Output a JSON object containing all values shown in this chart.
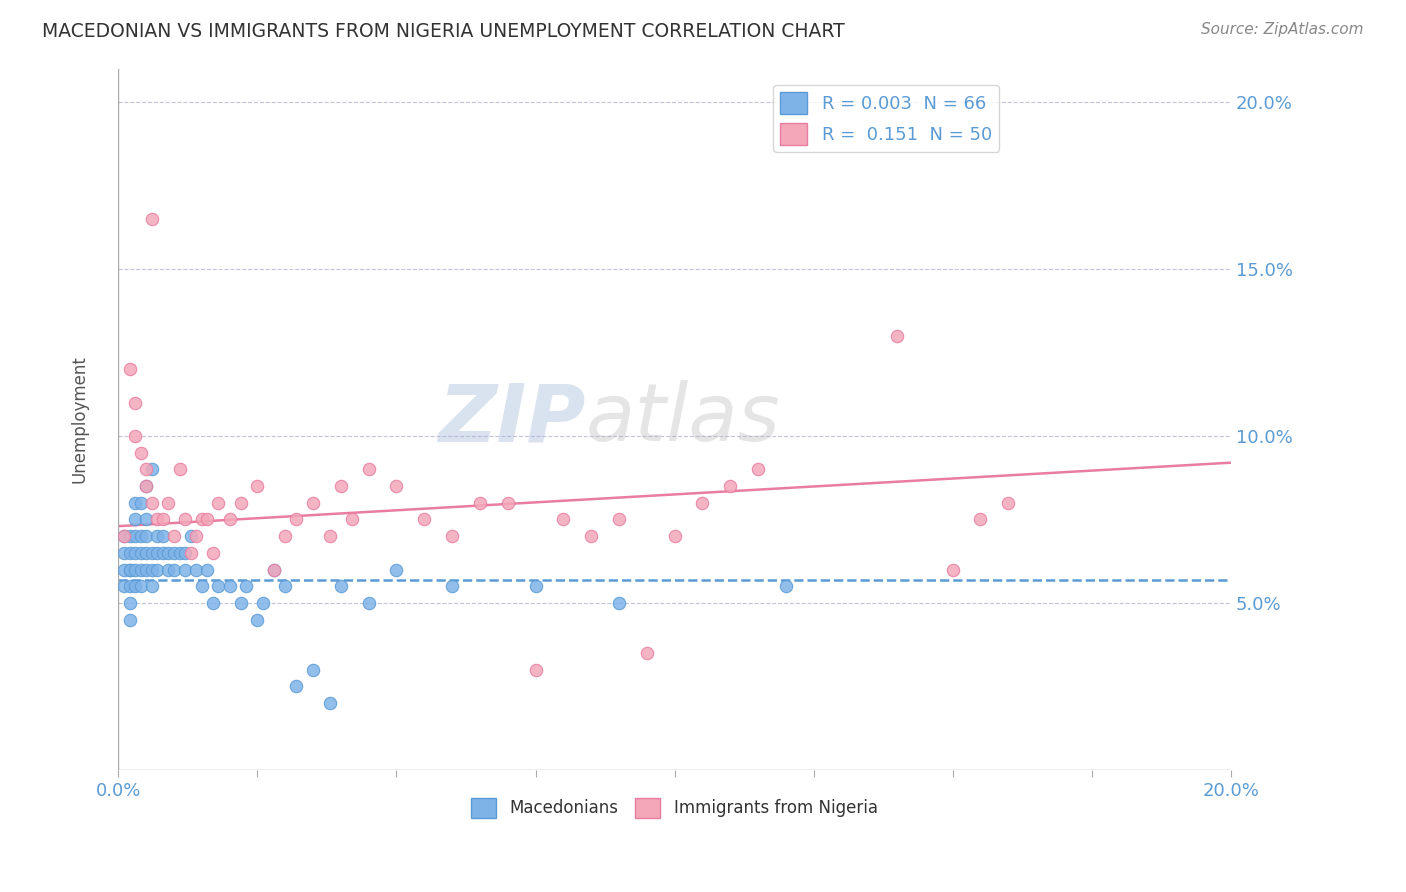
{
  "title": "MACEDONIAN VS IMMIGRANTS FROM NIGERIA UNEMPLOYMENT CORRELATION CHART",
  "source": "Source: ZipAtlas.com",
  "ylabel": "Unemployment",
  "xlim": [
    0.0,
    0.2
  ],
  "ylim": [
    0.0,
    0.21
  ],
  "yticks": [
    0.0,
    0.05,
    0.1,
    0.15,
    0.2
  ],
  "xticks": [
    0.0,
    0.025,
    0.05,
    0.075,
    0.1,
    0.125,
    0.15,
    0.175,
    0.2
  ],
  "macedonian_x": [
    0.001,
    0.001,
    0.001,
    0.001,
    0.002,
    0.002,
    0.002,
    0.002,
    0.002,
    0.002,
    0.002,
    0.003,
    0.003,
    0.003,
    0.003,
    0.003,
    0.003,
    0.004,
    0.004,
    0.004,
    0.004,
    0.004,
    0.005,
    0.005,
    0.005,
    0.005,
    0.005,
    0.006,
    0.006,
    0.006,
    0.006,
    0.007,
    0.007,
    0.007,
    0.008,
    0.008,
    0.009,
    0.009,
    0.01,
    0.01,
    0.011,
    0.012,
    0.012,
    0.013,
    0.014,
    0.015,
    0.016,
    0.017,
    0.018,
    0.02,
    0.022,
    0.023,
    0.025,
    0.026,
    0.028,
    0.03,
    0.032,
    0.035,
    0.038,
    0.04,
    0.045,
    0.05,
    0.06,
    0.075,
    0.09,
    0.12
  ],
  "macedonian_y": [
    0.06,
    0.065,
    0.07,
    0.055,
    0.06,
    0.065,
    0.055,
    0.05,
    0.045,
    0.06,
    0.07,
    0.055,
    0.06,
    0.065,
    0.07,
    0.075,
    0.08,
    0.055,
    0.06,
    0.065,
    0.07,
    0.08,
    0.06,
    0.065,
    0.07,
    0.075,
    0.085,
    0.055,
    0.06,
    0.065,
    0.09,
    0.06,
    0.065,
    0.07,
    0.065,
    0.07,
    0.06,
    0.065,
    0.06,
    0.065,
    0.065,
    0.06,
    0.065,
    0.07,
    0.06,
    0.055,
    0.06,
    0.05,
    0.055,
    0.055,
    0.05,
    0.055,
    0.045,
    0.05,
    0.06,
    0.055,
    0.025,
    0.03,
    0.02,
    0.055,
    0.05,
    0.06,
    0.055,
    0.055,
    0.05,
    0.055
  ],
  "nigeria_x": [
    0.001,
    0.002,
    0.003,
    0.003,
    0.004,
    0.005,
    0.005,
    0.006,
    0.006,
    0.007,
    0.008,
    0.009,
    0.01,
    0.011,
    0.012,
    0.013,
    0.014,
    0.015,
    0.016,
    0.017,
    0.018,
    0.02,
    0.022,
    0.025,
    0.028,
    0.03,
    0.032,
    0.035,
    0.038,
    0.04,
    0.042,
    0.045,
    0.05,
    0.055,
    0.06,
    0.065,
    0.07,
    0.075,
    0.08,
    0.085,
    0.09,
    0.095,
    0.1,
    0.105,
    0.11,
    0.115,
    0.14,
    0.15,
    0.155,
    0.16
  ],
  "nigeria_y": [
    0.07,
    0.12,
    0.1,
    0.11,
    0.095,
    0.09,
    0.085,
    0.08,
    0.165,
    0.075,
    0.075,
    0.08,
    0.07,
    0.09,
    0.075,
    0.065,
    0.07,
    0.075,
    0.075,
    0.065,
    0.08,
    0.075,
    0.08,
    0.085,
    0.06,
    0.07,
    0.075,
    0.08,
    0.07,
    0.085,
    0.075,
    0.09,
    0.085,
    0.075,
    0.07,
    0.08,
    0.08,
    0.03,
    0.075,
    0.07,
    0.075,
    0.035,
    0.07,
    0.08,
    0.085,
    0.09,
    0.13,
    0.06,
    0.075,
    0.08
  ],
  "mac_color": "#7EB3E8",
  "mac_edge_color": "#5B9BD5",
  "nig_color": "#F4A7B9",
  "nig_edge_color": "#E87DA0",
  "mac_line_color": "#5B9BD5",
  "nig_line_color": "#E87DA0",
  "mac_R": 0.003,
  "mac_N": 66,
  "nig_R": 0.151,
  "nig_N": 50,
  "mac_trend_start_y": 0.057,
  "mac_trend_end_y": 0.057,
  "nig_trend_start_y": 0.073,
  "nig_trend_end_y": 0.092,
  "background_color": "#FFFFFF",
  "grid_color": "#AAAACC",
  "title_color": "#333333",
  "axis_label_color": "#5B9BD5",
  "watermark_zip": "ZIP",
  "watermark_atlas": "atlas",
  "legend_R_color": "#5B9BD5"
}
